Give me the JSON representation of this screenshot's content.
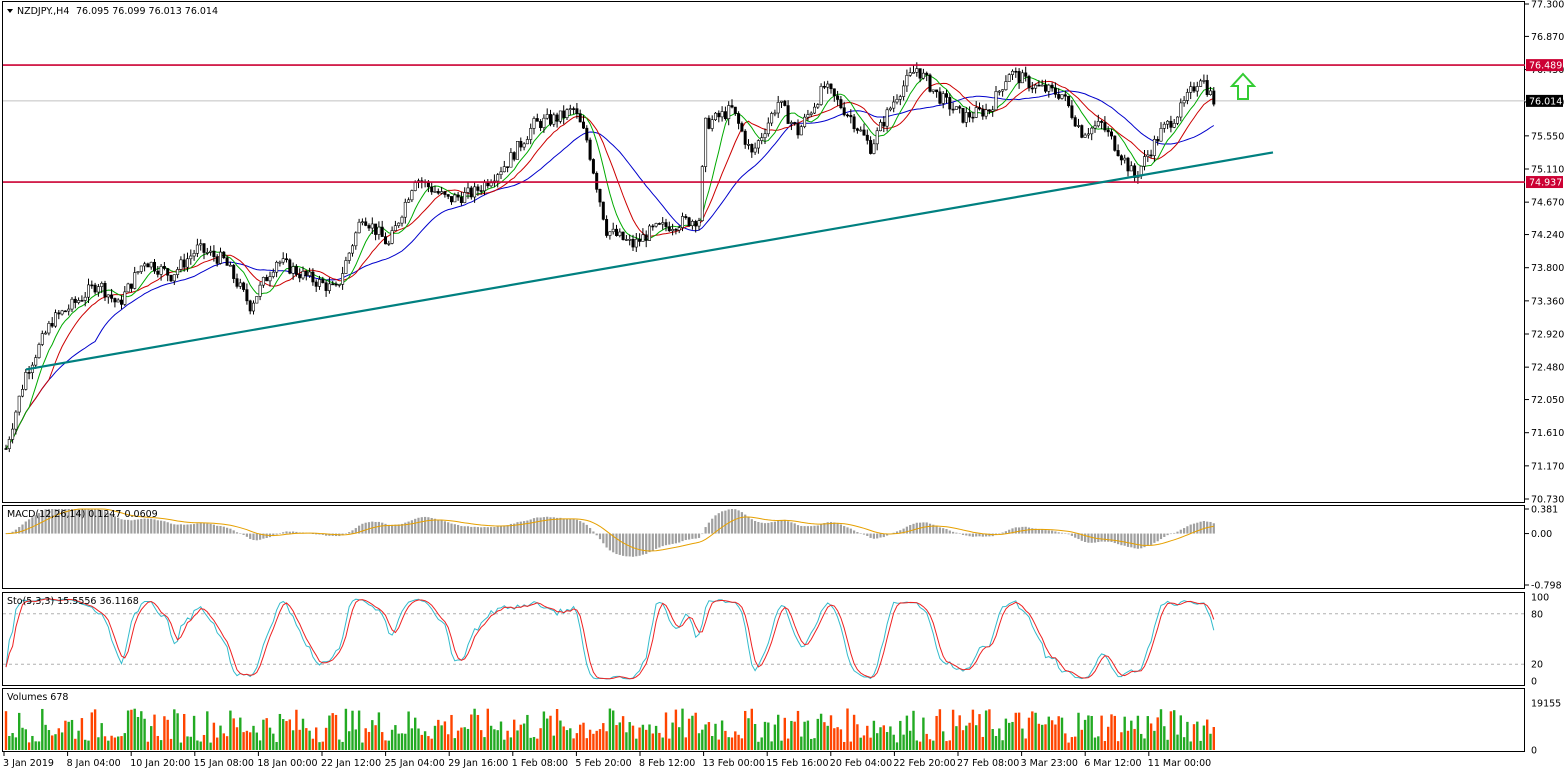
{
  "window": {
    "symbol_header": "NZDJPY.,H4",
    "ohlc_header": "76.095 76.099 76.013 76.014"
  },
  "colors": {
    "bull_candle": "#000000",
    "bear_candle": "#000000",
    "sma_blue": "#0000cc",
    "sma_red": "#cc0000",
    "sma_green": "#00aa00",
    "level_line": "#cc0033",
    "trendline": "#008080",
    "arrow": "#33cc33",
    "current_price_tag": "#000000",
    "volume_up": "#22aa22",
    "volume_down": "#ff4400",
    "macd_hist": "#a0a0a0",
    "macd_signal": "#e6a000",
    "stoch_main": "#33bbcc",
    "stoch_signal": "#ee2222"
  },
  "price_axis": {
    "ticks": [
      "77.300",
      "76.870",
      "76.430",
      "76.000",
      "75.550",
      "75.110",
      "74.670",
      "74.240",
      "73.800",
      "73.360",
      "72.920",
      "72.480",
      "72.050",
      "71.610",
      "71.170",
      "70.730"
    ],
    "level_tags": [
      {
        "text": "76.489",
        "value": 76.489
      },
      {
        "text": "74.937",
        "value": 74.937
      }
    ],
    "current_tag": {
      "text": "76.014",
      "value": 76.014
    }
  },
  "time_axis": {
    "labels": [
      "3 Jan 2019",
      "8 Jan 04:00",
      "10 Jan 20:00",
      "15 Jan 08:00",
      "18 Jan 00:00",
      "22 Jan 12:00",
      "25 Jan 04:00",
      "29 Jan 16:00",
      "1 Feb 08:00",
      "5 Feb 20:00",
      "8 Feb 12:00",
      "13 Feb 00:00",
      "15 Feb 16:00",
      "20 Feb 04:00",
      "22 Feb 20:00",
      "27 Feb 08:00",
      "3 Mar 23:00",
      "6 Mar 12:00",
      "11 Mar 00:00"
    ]
  },
  "macd_panel": {
    "header": "MACD(12,26,14) 0.1247 0.0609",
    "ticks": [
      "0.381",
      "0.00",
      "-0.798"
    ]
  },
  "stoch_panel": {
    "header": "Sto(5,3,3) 15.5556 36.1168",
    "ticks": [
      "100",
      "80",
      "20",
      "0"
    ]
  },
  "volume_panel": {
    "header": "Volumes 678",
    "ticks": [
      "19155",
      "0"
    ]
  },
  "chart_data": {
    "type": "candlestick",
    "symbol": "NZDJPY.",
    "timeframe": "H4",
    "ylim": [
      70.73,
      77.3
    ],
    "horizontal_levels": [
      76.489,
      74.937
    ],
    "current_price": 76.014,
    "trendline": {
      "start": {
        "x": "3 Jan 2019",
        "y": 72.45
      },
      "end": {
        "x": "13 Mar",
        "y": 75.33
      }
    },
    "arrow_annotation": "up",
    "close_path": [
      {
        "x": 0,
        "y": 71.4
      },
      {
        "x": 6,
        "y": 72.4
      },
      {
        "x": 14,
        "y": 73.1
      },
      {
        "x": 20,
        "y": 73.3
      },
      {
        "x": 28,
        "y": 73.6
      },
      {
        "x": 34,
        "y": 73.3
      },
      {
        "x": 42,
        "y": 73.9
      },
      {
        "x": 50,
        "y": 73.7
      },
      {
        "x": 58,
        "y": 74.05
      },
      {
        "x": 66,
        "y": 73.9
      },
      {
        "x": 74,
        "y": 73.3
      },
      {
        "x": 82,
        "y": 73.9
      },
      {
        "x": 90,
        "y": 73.7
      },
      {
        "x": 100,
        "y": 73.5
      },
      {
        "x": 108,
        "y": 74.5
      },
      {
        "x": 116,
        "y": 74.1
      },
      {
        "x": 124,
        "y": 75.0
      },
      {
        "x": 134,
        "y": 74.7
      },
      {
        "x": 142,
        "y": 74.8
      },
      {
        "x": 152,
        "y": 75.2
      },
      {
        "x": 160,
        "y": 75.7
      },
      {
        "x": 168,
        "y": 75.8
      },
      {
        "x": 172,
        "y": 75.9
      },
      {
        "x": 176,
        "y": 75.5
      },
      {
        "x": 182,
        "y": 74.3
      },
      {
        "x": 190,
        "y": 74.1
      },
      {
        "x": 196,
        "y": 74.3
      },
      {
        "x": 204,
        "y": 74.4
      },
      {
        "x": 210,
        "y": 74.45
      },
      {
        "x": 212,
        "y": 75.7
      },
      {
        "x": 220,
        "y": 75.9
      },
      {
        "x": 226,
        "y": 75.3
      },
      {
        "x": 234,
        "y": 76.0
      },
      {
        "x": 240,
        "y": 75.6
      },
      {
        "x": 248,
        "y": 76.2
      },
      {
        "x": 256,
        "y": 75.8
      },
      {
        "x": 262,
        "y": 75.4
      },
      {
        "x": 270,
        "y": 76.1
      },
      {
        "x": 276,
        "y": 76.45
      },
      {
        "x": 282,
        "y": 76.1
      },
      {
        "x": 290,
        "y": 75.8
      },
      {
        "x": 298,
        "y": 75.9
      },
      {
        "x": 304,
        "y": 76.4
      },
      {
        "x": 312,
        "y": 76.2
      },
      {
        "x": 320,
        "y": 76.1
      },
      {
        "x": 326,
        "y": 75.6
      },
      {
        "x": 332,
        "y": 75.7
      },
      {
        "x": 338,
        "y": 75.3
      },
      {
        "x": 342,
        "y": 75.0
      },
      {
        "x": 350,
        "y": 75.6
      },
      {
        "x": 356,
        "y": 75.9
      },
      {
        "x": 362,
        "y": 76.35
      },
      {
        "x": 366,
        "y": 76.014
      }
    ],
    "volume_range": [
      0,
      19155
    ],
    "macd_range": [
      -0.798,
      0.381
    ],
    "stochastic_range": [
      0,
      100
    ],
    "stochastic_levels": [
      80,
      20
    ]
  }
}
